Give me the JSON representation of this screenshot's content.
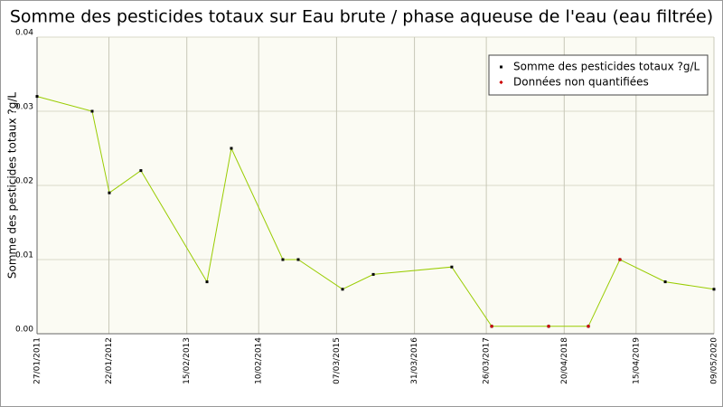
{
  "chart_data": {
    "type": "line",
    "title": "Somme des pesticides totaux sur Eau brute / phase aqueuse de l'eau (eau filtrée)",
    "y_label": "Somme des pesticides totaux ?g/L",
    "x": [
      "2011-01-27",
      "2011-10-30",
      "2012-01-24",
      "2012-06-30",
      "2013-05-27",
      "2013-09-26",
      "2014-06-11",
      "2014-08-27",
      "2015-04-06",
      "2015-09-07",
      "2016-10-04",
      "2017-04-22",
      "2018-02-01",
      "2018-08-19",
      "2019-01-24",
      "2019-09-08",
      "2020-05-09"
    ],
    "series": [
      {
        "name": "Somme des pesticides totaux ?g/L",
        "color": "#99cc00",
        "marker_color": "#000000",
        "values": [
          0.032,
          0.03,
          0.019,
          0.022,
          0.007,
          0.025,
          0.01,
          0.01,
          0.006,
          0.008,
          0.009,
          0.001,
          0.001,
          0.001,
          0.01,
          0.007,
          0.006
        ]
      },
      {
        "name": "Données non quantifiées",
        "color": "#cc0000",
        "values": [
          null,
          null,
          null,
          null,
          null,
          null,
          null,
          null,
          null,
          null,
          null,
          0.001,
          0.001,
          0.001,
          0.01,
          null,
          null
        ]
      }
    ],
    "xlim": [
      "2011-01-27",
      "2020-05-09"
    ],
    "xticks": [
      {
        "value": "2011-01-27",
        "label": "27/01/2011"
      },
      {
        "value": "2012-01-22",
        "label": "22/01/2012"
      },
      {
        "value": "2013-02-15",
        "label": "15/02/2013"
      },
      {
        "value": "2014-02-10",
        "label": "10/02/2014"
      },
      {
        "value": "2015-03-07",
        "label": "07/03/2015"
      },
      {
        "value": "2016-03-31",
        "label": "31/03/2016"
      },
      {
        "value": "2017-03-26",
        "label": "26/03/2017"
      },
      {
        "value": "2018-04-20",
        "label": "20/04/2018"
      },
      {
        "value": "2019-04-15",
        "label": "15/04/2019"
      },
      {
        "value": "2020-05-09",
        "label": "09/05/2020"
      }
    ],
    "ylim": [
      0,
      0.04
    ],
    "yticks": [
      {
        "value": 0,
        "label": "0.00"
      },
      {
        "value": 0.01,
        "label": "0.01"
      },
      {
        "value": 0.02,
        "label": "0.02"
      },
      {
        "value": 0.03,
        "label": "0.03"
      },
      {
        "value": 0.04,
        "label": "0.04"
      }
    ],
    "grid": true,
    "legend": "upper right"
  }
}
